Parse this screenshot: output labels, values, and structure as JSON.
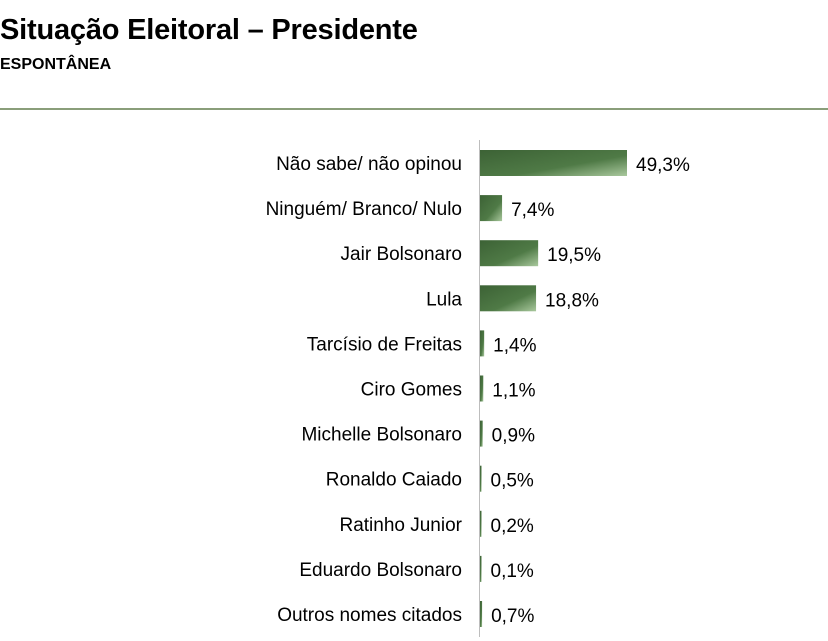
{
  "title": "Situação Eleitoral – Presidente",
  "subtitle": "ESPONTÂNEA",
  "colors": {
    "bar_dark": "#3c6235",
    "bar_light": "#a9c89d",
    "rule": "#8a9e7a"
  },
  "chart_data": {
    "type": "bar",
    "orientation": "horizontal",
    "title": "Situação Eleitoral – Presidente",
    "subtitle": "ESPONTÂNEA",
    "categories": [
      "Não sabe/ não opinou",
      "Ninguém/ Branco/ Nulo",
      "Jair Bolsonaro",
      "Lula",
      "Tarcísio de Freitas",
      "Ciro Gomes",
      "Michelle Bolsonaro",
      "Ronaldo Caiado",
      "Ratinho Junior",
      "Eduardo Bolsonaro",
      "Outros nomes citados"
    ],
    "values": [
      49.3,
      7.4,
      19.5,
      18.8,
      1.4,
      1.1,
      0.9,
      0.5,
      0.2,
      0.1,
      0.7
    ],
    "value_labels": [
      "49,3%",
      "7,4%",
      "19,5%",
      "18,8%",
      "1,4%",
      "1,1%",
      "0,9%",
      "0,5%",
      "0,2%",
      "0,1%",
      "0,7%"
    ],
    "xlim": [
      0,
      100
    ],
    "grid": false,
    "legend": "none"
  }
}
